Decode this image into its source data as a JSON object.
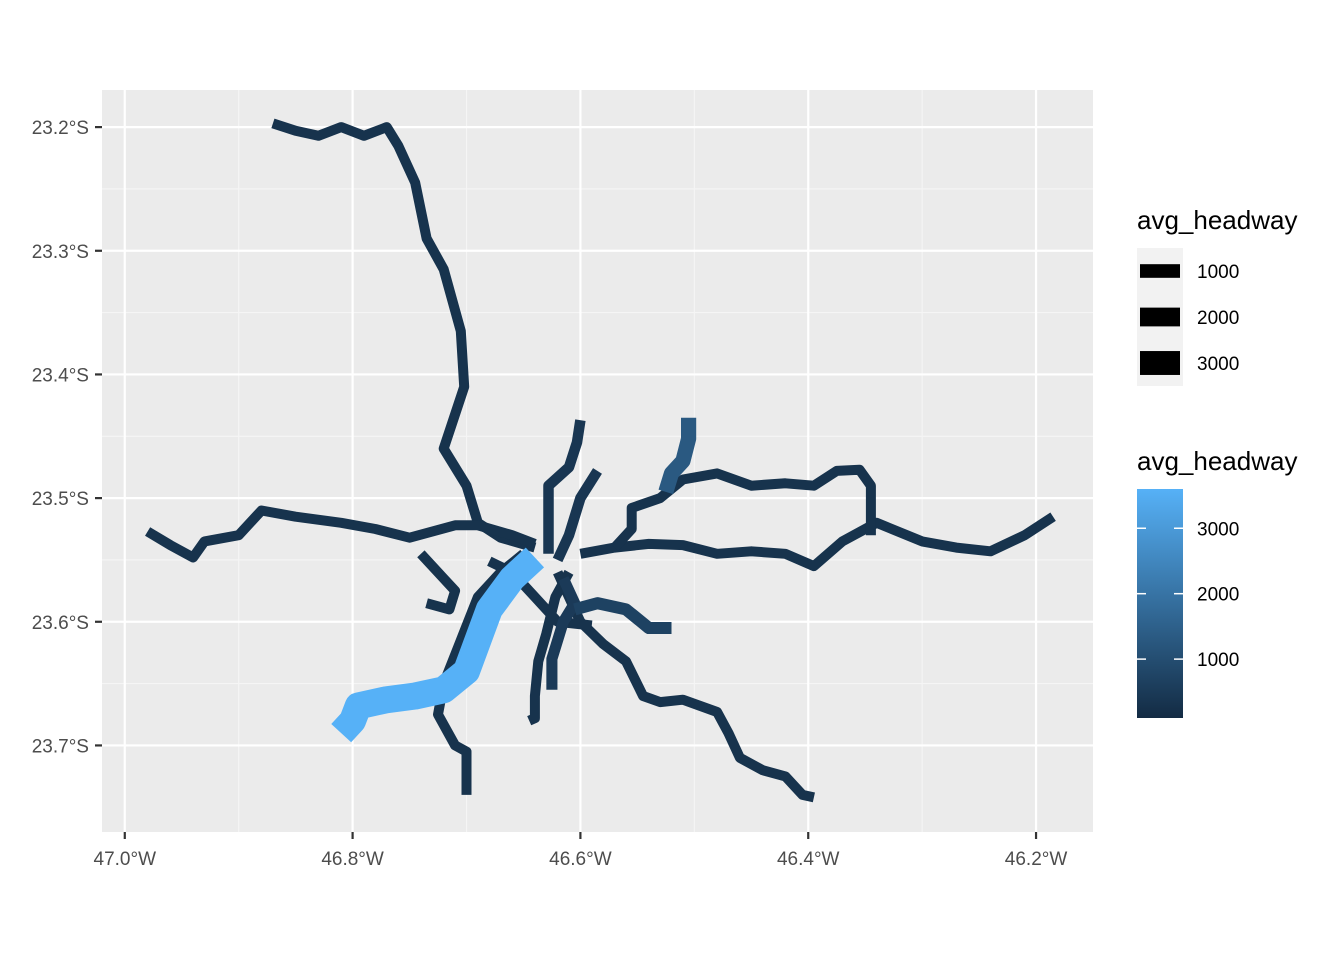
{
  "chart_data": {
    "type": "map",
    "x_ticks": [
      "47.0°W",
      "46.8°W",
      "46.6°W",
      "46.4°W",
      "46.2°W"
    ],
    "y_ticks": [
      "23.2°S",
      "23.3°S",
      "23.4°S",
      "23.5°S",
      "23.6°S",
      "23.7°S"
    ],
    "xlim": [
      -47.02,
      -46.15
    ],
    "ylim": [
      -23.77,
      -23.17
    ],
    "grid": true,
    "legend_position": "right",
    "legends": [
      {
        "title": "avg_headway",
        "kind": "linewidth",
        "entries": [
          {
            "label": "1000",
            "value": 1000
          },
          {
            "label": "2000",
            "value": 2000
          },
          {
            "label": "3000",
            "value": 3000
          }
        ]
      },
      {
        "title": "avg_headway",
        "kind": "colorbar",
        "breaks": [
          {
            "label": "3000",
            "value": 3000
          },
          {
            "label": "2000",
            "value": 2000
          },
          {
            "label": "1000",
            "value": 1000
          }
        ],
        "range": [
          100,
          3600
        ],
        "low_color": "#132b43",
        "high_color": "#56b1f7"
      }
    ],
    "routes": [
      {
        "avg_headway": 300,
        "coords": [
          [
            -46.87,
            -23.197
          ],
          [
            -46.85,
            -23.203
          ],
          [
            -46.83,
            -23.207
          ],
          [
            -46.81,
            -23.2
          ],
          [
            -46.79,
            -23.207
          ],
          [
            -46.77,
            -23.2
          ],
          [
            -46.76,
            -23.215
          ],
          [
            -46.745,
            -23.245
          ],
          [
            -46.735,
            -23.29
          ],
          [
            -46.72,
            -23.315
          ],
          [
            -46.705,
            -23.365
          ],
          [
            -46.702,
            -23.41
          ],
          [
            -46.72,
            -23.46
          ],
          [
            -46.7,
            -23.49
          ],
          [
            -46.69,
            -23.52
          ],
          [
            -46.67,
            -23.532
          ],
          [
            -46.64,
            -23.54
          ]
        ]
      },
      {
        "avg_headway": 300,
        "coords": [
          [
            -46.98,
            -23.527
          ],
          [
            -46.96,
            -23.538
          ],
          [
            -46.94,
            -23.548
          ],
          [
            -46.93,
            -23.535
          ],
          [
            -46.9,
            -23.53
          ],
          [
            -46.88,
            -23.51
          ],
          [
            -46.85,
            -23.515
          ],
          [
            -46.81,
            -23.52
          ],
          [
            -46.78,
            -23.525
          ],
          [
            -46.75,
            -23.532
          ],
          [
            -46.71,
            -23.522
          ],
          [
            -46.69,
            -23.522
          ],
          [
            -46.66,
            -23.53
          ],
          [
            -46.64,
            -23.537
          ]
        ]
      },
      {
        "avg_headway": 300,
        "coords": [
          [
            -46.6,
            -23.545
          ],
          [
            -46.57,
            -23.54
          ],
          [
            -46.54,
            -23.537
          ],
          [
            -46.51,
            -23.538
          ],
          [
            -46.48,
            -23.545
          ],
          [
            -46.45,
            -23.543
          ],
          [
            -46.42,
            -23.545
          ],
          [
            -46.395,
            -23.555
          ],
          [
            -46.37,
            -23.535
          ],
          [
            -46.34,
            -23.52
          ],
          [
            -46.3,
            -23.535
          ],
          [
            -46.27,
            -23.54
          ],
          [
            -46.24,
            -23.543
          ],
          [
            -46.21,
            -23.53
          ],
          [
            -46.185,
            -23.515
          ]
        ]
      },
      {
        "avg_headway": 300,
        "coords": [
          [
            -46.57,
            -23.54
          ],
          [
            -46.555,
            -23.525
          ],
          [
            -46.555,
            -23.508
          ],
          [
            -46.53,
            -23.5
          ],
          [
            -46.51,
            -23.485
          ],
          [
            -46.48,
            -23.48
          ],
          [
            -46.45,
            -23.49
          ],
          [
            -46.42,
            -23.488
          ],
          [
            -46.395,
            -23.49
          ],
          [
            -46.375,
            -23.478
          ],
          [
            -46.355,
            -23.477
          ],
          [
            -46.345,
            -23.49
          ],
          [
            -46.345,
            -23.53
          ]
        ]
      },
      {
        "avg_headway": 300,
        "coords": [
          [
            -46.62,
            -23.56
          ],
          [
            -46.6,
            -23.6
          ],
          [
            -46.58,
            -23.618
          ],
          [
            -46.56,
            -23.632
          ],
          [
            -46.545,
            -23.66
          ],
          [
            -46.53,
            -23.665
          ],
          [
            -46.51,
            -23.663
          ],
          [
            -46.48,
            -23.673
          ],
          [
            -46.47,
            -23.69
          ],
          [
            -46.46,
            -23.71
          ],
          [
            -46.44,
            -23.72
          ],
          [
            -46.42,
            -23.725
          ],
          [
            -46.405,
            -23.74
          ],
          [
            -46.395,
            -23.742
          ]
        ]
      },
      {
        "avg_headway": 300,
        "coords": [
          [
            -46.65,
            -23.545
          ],
          [
            -46.67,
            -23.56
          ],
          [
            -46.69,
            -23.58
          ],
          [
            -46.705,
            -23.615
          ],
          [
            -46.72,
            -23.65
          ],
          [
            -46.725,
            -23.675
          ],
          [
            -46.71,
            -23.7
          ],
          [
            -46.7,
            -23.705
          ],
          [
            -46.7,
            -23.74
          ]
        ]
      },
      {
        "avg_headway": 300,
        "coords": [
          [
            -46.74,
            -23.545
          ],
          [
            -46.72,
            -23.565
          ],
          [
            -46.71,
            -23.575
          ],
          [
            -46.715,
            -23.59
          ],
          [
            -46.735,
            -23.585
          ]
        ]
      },
      {
        "avg_headway": 300,
        "coords": [
          [
            -46.68,
            -23.551
          ],
          [
            -46.66,
            -23.56
          ],
          [
            -46.64,
            -23.58
          ],
          [
            -46.62,
            -23.6
          ],
          [
            -46.61,
            -23.601
          ],
          [
            -46.59,
            -23.603
          ]
        ]
      },
      {
        "avg_headway": 400,
        "coords": [
          [
            -46.628,
            -23.545
          ],
          [
            -46.628,
            -23.49
          ],
          [
            -46.61,
            -23.475
          ],
          [
            -46.603,
            -23.455
          ],
          [
            -46.6,
            -23.437
          ]
        ]
      },
      {
        "avg_headway": 400,
        "coords": [
          [
            -46.62,
            -23.55
          ],
          [
            -46.61,
            -23.53
          ],
          [
            -46.6,
            -23.5
          ],
          [
            -46.585,
            -23.478
          ]
        ]
      },
      {
        "avg_headway": 300,
        "coords": [
          [
            -46.61,
            -23.56
          ],
          [
            -46.622,
            -23.58
          ],
          [
            -46.63,
            -23.61
          ],
          [
            -46.637,
            -23.632
          ],
          [
            -46.64,
            -23.66
          ],
          [
            -46.64,
            -23.678
          ],
          [
            -46.645,
            -23.68
          ]
        ]
      },
      {
        "avg_headway": 500,
        "coords": [
          [
            -46.615,
            -23.565
          ],
          [
            -46.605,
            -23.585
          ],
          [
            -46.615,
            -23.6
          ],
          [
            -46.625,
            -23.63
          ],
          [
            -46.625,
            -23.655
          ]
        ]
      },
      {
        "avg_headway": 700,
        "coords": [
          [
            -46.605,
            -23.59
          ],
          [
            -46.585,
            -23.585
          ],
          [
            -46.56,
            -23.59
          ],
          [
            -46.54,
            -23.605
          ],
          [
            -46.52,
            -23.605
          ]
        ]
      },
      {
        "avg_headway": 1300,
        "coords": [
          [
            -46.505,
            -23.435
          ],
          [
            -46.505,
            -23.452
          ],
          [
            -46.51,
            -23.47
          ],
          [
            -46.52,
            -23.48
          ],
          [
            -46.525,
            -23.495
          ]
        ]
      },
      {
        "avg_headway": 3600,
        "coords": [
          [
            -46.64,
            -23.548
          ],
          [
            -46.66,
            -23.565
          ],
          [
            -46.68,
            -23.59
          ],
          [
            -46.69,
            -23.615
          ],
          [
            -46.7,
            -23.64
          ],
          [
            -46.72,
            -23.655
          ],
          [
            -46.745,
            -23.66
          ],
          [
            -46.77,
            -23.663
          ],
          [
            -46.795,
            -23.668
          ],
          [
            -46.8,
            -23.68
          ],
          [
            -46.81,
            -23.69
          ]
        ]
      }
    ]
  }
}
